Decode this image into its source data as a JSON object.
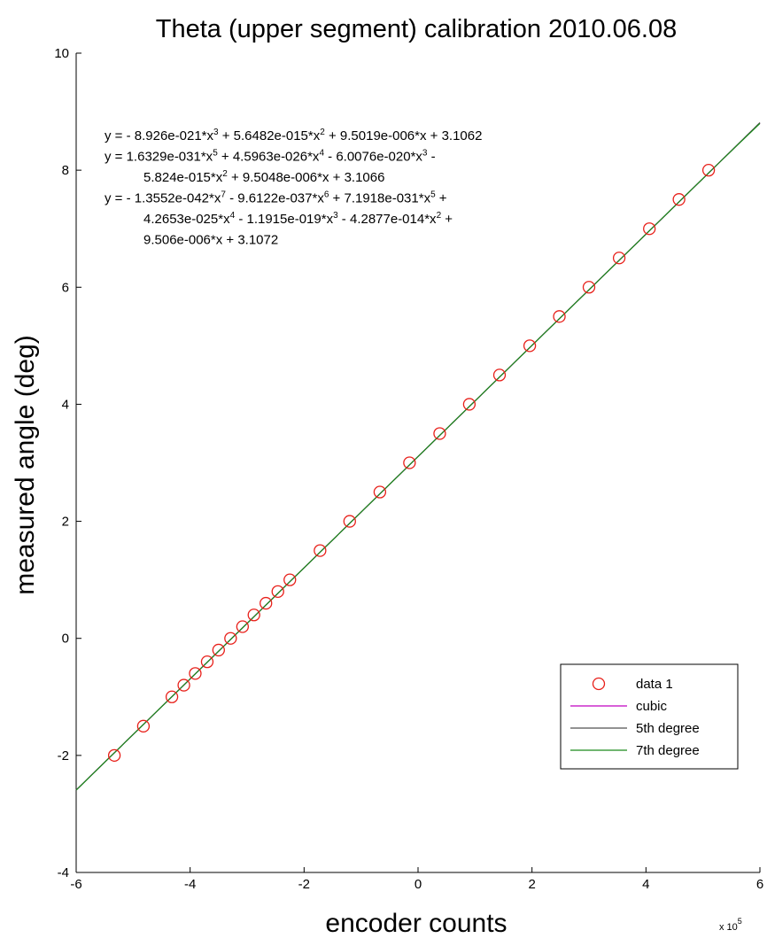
{
  "chart_data": {
    "type": "scatter",
    "title": "Theta (upper segment) calibration 2010.06.08",
    "xlabel": "encoder counts",
    "ylabel": "measured angle (deg)",
    "x_multiplier": "x 10",
    "x_multiplier_exp": "5",
    "xlim": [
      -6,
      6
    ],
    "ylim": [
      -4,
      10
    ],
    "x_ticks": [
      -6,
      -4,
      -2,
      0,
      2,
      4,
      6
    ],
    "y_ticks": [
      -4,
      -2,
      0,
      2,
      4,
      6,
      8,
      10
    ],
    "x_tick_labels": [
      "-6",
      "-4",
      "-2",
      "0",
      "2",
      "4",
      "6"
    ],
    "y_tick_labels": [
      "-4",
      "-2",
      "0",
      "2",
      "4",
      "6",
      "8",
      "10"
    ],
    "grid": false,
    "legend_position": "lower-right",
    "series": [
      {
        "name": "data 1",
        "marker": "circle",
        "color": "#e8201a",
        "x": [
          -5.33,
          -4.82,
          -4.32,
          -4.11,
          -3.91,
          -3.7,
          -3.5,
          -3.29,
          -3.08,
          -2.88,
          -2.67,
          -2.46,
          -2.25,
          -1.72,
          -1.2,
          -0.67,
          -0.15,
          0.38,
          0.9,
          1.43,
          1.96,
          2.48,
          3.0,
          3.53,
          4.06,
          4.58,
          5.1
        ],
        "y": [
          -2.0,
          -1.5,
          -1.0,
          -0.8,
          -0.6,
          -0.4,
          -0.2,
          0.0,
          0.2,
          0.4,
          0.6,
          0.8,
          1.0,
          1.5,
          2.0,
          2.5,
          3.0,
          3.5,
          4.0,
          4.5,
          5.0,
          5.5,
          6.0,
          6.5,
          7.0,
          7.5,
          8.0
        ]
      },
      {
        "name": "cubic",
        "type": "line",
        "color": "#c000c0",
        "coefficients": [
          -8.926e-21,
          5.6482e-15,
          9.5019e-06,
          3.1062
        ]
      },
      {
        "name": "5th degree",
        "type": "line",
        "color": "#505050",
        "coefficients": [
          1.6329e-31,
          4.5963e-26,
          -6.0076e-20,
          -5.824e-15,
          9.5048e-06,
          3.1066
        ]
      },
      {
        "name": "7th degree",
        "type": "line",
        "color": "#1a8a1a",
        "coefficients": [
          -1.3552e-42,
          -9.6122e-37,
          7.1918e-31,
          4.2653e-25,
          -1.1915e-19,
          -4.2877e-14,
          9.506e-06,
          3.1072
        ]
      }
    ],
    "annotations": [
      [
        [
          {
            "t": "y = - 8.926e-021*x",
            "s": false
          },
          {
            "t": "3",
            "s": true
          },
          {
            "t": " + 5.6482e-015*x",
            "s": false
          },
          {
            "t": "2",
            "s": true
          },
          {
            "t": " + 9.5019e-006*x + 3.1062",
            "s": false
          }
        ]
      ],
      [
        [
          {
            "t": "y = 1.6329e-031*x",
            "s": false
          },
          {
            "t": "5",
            "s": true
          },
          {
            "t": " + 4.5963e-026*x",
            "s": false
          },
          {
            "t": "4",
            "s": true
          },
          {
            "t": " - 6.0076e-020*x",
            "s": false
          },
          {
            "t": "3",
            "s": true
          },
          {
            "t": " -",
            "s": false
          }
        ],
        [
          {
            "t": "5.824e-015*x",
            "s": false
          },
          {
            "t": "2",
            "s": true
          },
          {
            "t": " + 9.5048e-006*x + 3.1066",
            "s": false
          }
        ]
      ],
      [
        [
          {
            "t": "y = - 1.3552e-042*x",
            "s": false
          },
          {
            "t": "7",
            "s": true
          },
          {
            "t": " - 9.6122e-037*x",
            "s": false
          },
          {
            "t": "6",
            "s": true
          },
          {
            "t": " + 7.1918e-031*x",
            "s": false
          },
          {
            "t": "5",
            "s": true
          },
          {
            "t": " +",
            "s": false
          }
        ],
        [
          {
            "t": "4.2653e-025*x",
            "s": false
          },
          {
            "t": "4",
            "s": true
          },
          {
            "t": " - 1.1915e-019*x",
            "s": false
          },
          {
            "t": "3",
            "s": true
          },
          {
            "t": " - 4.2877e-014*x",
            "s": false
          },
          {
            "t": "2",
            "s": true
          },
          {
            "t": " +",
            "s": false
          }
        ],
        [
          {
            "t": "9.506e-006*x + 3.1072",
            "s": false
          }
        ]
      ]
    ]
  }
}
